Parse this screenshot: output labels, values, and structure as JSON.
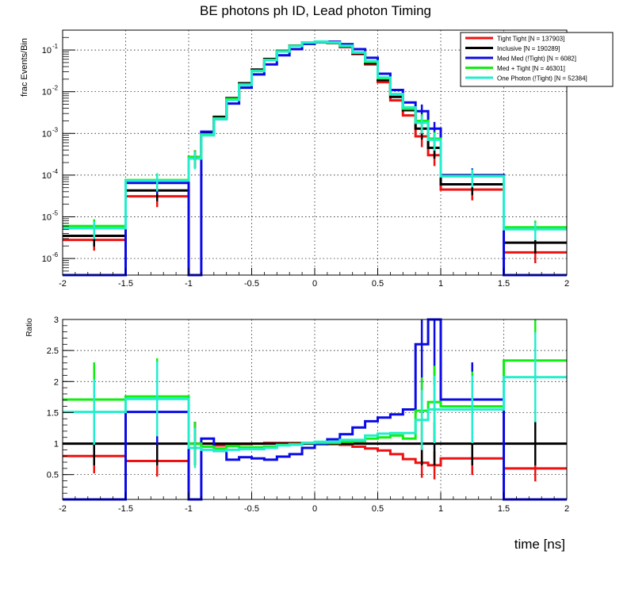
{
  "colors": {
    "tight_tight": "#ee1111",
    "inclusive": "#000000",
    "med_med": "#0a0ae6",
    "med_tight": "#11ee11",
    "one_photon": "#22eecc"
  },
  "chart_data": [
    {
      "type": "line",
      "title": "BE photons ph ID, Lead photon Timing",
      "xlabel": "",
      "ylabel": "frac Events/Bin",
      "xlim": [
        -2,
        2
      ],
      "ylim": [
        4e-07,
        0.3
      ],
      "yscale": "log",
      "grid": true,
      "legend_position": "top-right",
      "x_ticks": [
        "-2",
        "-1.5",
        "-1",
        "-0.5",
        "0",
        "0.5",
        "1",
        "1.5",
        "2"
      ],
      "y_ticks": [
        "10",
        "10",
        "10",
        "10",
        "10",
        "10"
      ],
      "y_tick_exponents": [
        "-6",
        "-5",
        "-4",
        "-3",
        "-2",
        "-1"
      ],
      "x_edges": [
        -2,
        -1.5,
        -1,
        -0.9,
        -0.8,
        -0.7,
        -0.6,
        -0.5,
        -0.4,
        -0.3,
        -0.2,
        -0.1,
        0,
        0.1,
        0.2,
        0.3,
        0.4,
        0.5,
        0.6,
        0.7,
        0.8,
        0.9,
        1,
        1.5,
        2
      ],
      "series": [
        {
          "name": "Tight Tight [N = 137903]",
          "color_key": "tight_tight",
          "values": [
            2.8e-06,
            3.1e-05,
            0.00027,
            0.001,
            0.0024,
            0.0068,
            0.0155,
            0.033,
            0.06,
            0.095,
            0.128,
            0.152,
            0.158,
            0.148,
            0.118,
            0.08,
            0.045,
            0.017,
            0.0062,
            0.0027,
            0.00085,
            0.0003,
            4.5e-05,
            1.4e-06
          ]
        },
        {
          "name": "Inclusive [N = 190289]",
          "color_key": "inclusive",
          "values": [
            3.5e-06,
            4.3e-05,
            0.00027,
            0.001,
            0.0025,
            0.007,
            0.016,
            0.034,
            0.061,
            0.095,
            0.127,
            0.15,
            0.156,
            0.148,
            0.12,
            0.083,
            0.048,
            0.019,
            0.0075,
            0.0036,
            0.0013,
            0.00045,
            6e-05,
            2.4e-06
          ]
        },
        {
          "name": "Med Med (!Tight) [N = 6082]",
          "color_key": "med_med",
          "values": [
            1e-09,
            6.5e-05,
            1e-09,
            0.0011,
            0.0022,
            0.0052,
            0.0125,
            0.026,
            0.045,
            0.075,
            0.105,
            0.14,
            0.155,
            0.158,
            0.138,
            0.105,
            0.065,
            0.027,
            0.011,
            0.0055,
            0.0034,
            0.0013,
            0.0001,
            1e-09
          ]
        },
        {
          "name": "Med + Tight [N = 46301]",
          "color_key": "med_tight",
          "values": [
            6e-06,
            7.6e-05,
            0.00027,
            0.00095,
            0.0023,
            0.0067,
            0.015,
            0.032,
            0.058,
            0.093,
            0.126,
            0.151,
            0.158,
            0.15,
            0.124,
            0.086,
            0.052,
            0.021,
            0.0085,
            0.0039,
            0.002,
            0.00075,
            9.5e-05,
            5.6e-06
          ]
        },
        {
          "name": "One Photon (!Tight) [N = 52384]",
          "color_key": "one_photon",
          "values": [
            5.3e-06,
            7.4e-05,
            0.00025,
            0.0009,
            0.0022,
            0.0063,
            0.0145,
            0.031,
            0.057,
            0.092,
            0.125,
            0.152,
            0.16,
            0.152,
            0.127,
            0.088,
            0.054,
            0.022,
            0.0088,
            0.0042,
            0.0018,
            0.0007,
            9.3e-05,
            5e-06
          ]
        }
      ]
    },
    {
      "type": "line",
      "title": "",
      "xlabel": "time [ns]",
      "ylabel": "Ratio",
      "xlim": [
        -2,
        2
      ],
      "ylim": [
        0.1,
        3
      ],
      "grid": true,
      "x_ticks": [
        "-2",
        "-1.5",
        "-1",
        "-0.5",
        "0",
        "0.5",
        "1",
        "1.5",
        "2"
      ],
      "y_ticks": [
        "0.5",
        "1",
        "1.5",
        "2",
        "2.5",
        "3"
      ],
      "x_edges": [
        -2,
        -1.5,
        -1,
        -0.9,
        -0.8,
        -0.7,
        -0.6,
        -0.5,
        -0.4,
        -0.3,
        -0.2,
        -0.1,
        0,
        0.1,
        0.2,
        0.3,
        0.4,
        0.5,
        0.6,
        0.7,
        0.8,
        0.9,
        1,
        1.5,
        2
      ],
      "series": [
        {
          "name": "Tight Tight [N = 137903]",
          "color_key": "tight_tight",
          "values": [
            0.8,
            0.72,
            1.0,
            1.0,
            0.97,
            0.99,
            0.99,
            1.0,
            1.01,
            1.01,
            1.01,
            1.01,
            1.0,
            0.99,
            0.98,
            0.95,
            0.92,
            0.89,
            0.83,
            0.75,
            0.69,
            0.65,
            0.76,
            0.6
          ]
        },
        {
          "name": "Inclusive [N = 190289]",
          "color_key": "inclusive",
          "values": [
            1.0,
            1.0,
            1.0,
            1.0,
            1.0,
            1.0,
            1.0,
            1.0,
            1.0,
            1.0,
            1.0,
            1.0,
            1.0,
            1.0,
            1.0,
            1.0,
            1.0,
            1.0,
            1.0,
            1.0,
            1.0,
            1.0,
            1.0,
            1.0
          ]
        },
        {
          "name": "Med Med (!Tight) [N = 6082]",
          "color_key": "med_med",
          "values": [
            0.0,
            1.51,
            0.0,
            1.08,
            0.88,
            0.74,
            0.78,
            0.76,
            0.74,
            0.79,
            0.83,
            0.93,
            0.99,
            1.07,
            1.15,
            1.26,
            1.36,
            1.42,
            1.47,
            1.55,
            2.6,
            3.0,
            1.71,
            0.0
          ]
        },
        {
          "name": "Med + Tight [N = 46301]",
          "color_key": "med_tight",
          "values": [
            1.71,
            1.76,
            1.0,
            0.95,
            0.92,
            0.96,
            0.94,
            0.94,
            0.95,
            0.98,
            0.99,
            1.01,
            1.01,
            1.01,
            1.03,
            1.04,
            1.08,
            1.1,
            1.13,
            1.08,
            1.53,
            1.67,
            1.6,
            2.34
          ]
        },
        {
          "name": "One Photon (!Tight) [N = 52384]",
          "color_key": "one_photon",
          "values": [
            1.51,
            1.72,
            0.93,
            0.9,
            0.88,
            0.9,
            0.91,
            0.91,
            0.93,
            0.97,
            0.98,
            1.01,
            1.03,
            1.03,
            1.06,
            1.06,
            1.13,
            1.16,
            1.17,
            1.17,
            1.38,
            1.55,
            1.55,
            2.07
          ]
        }
      ]
    }
  ]
}
